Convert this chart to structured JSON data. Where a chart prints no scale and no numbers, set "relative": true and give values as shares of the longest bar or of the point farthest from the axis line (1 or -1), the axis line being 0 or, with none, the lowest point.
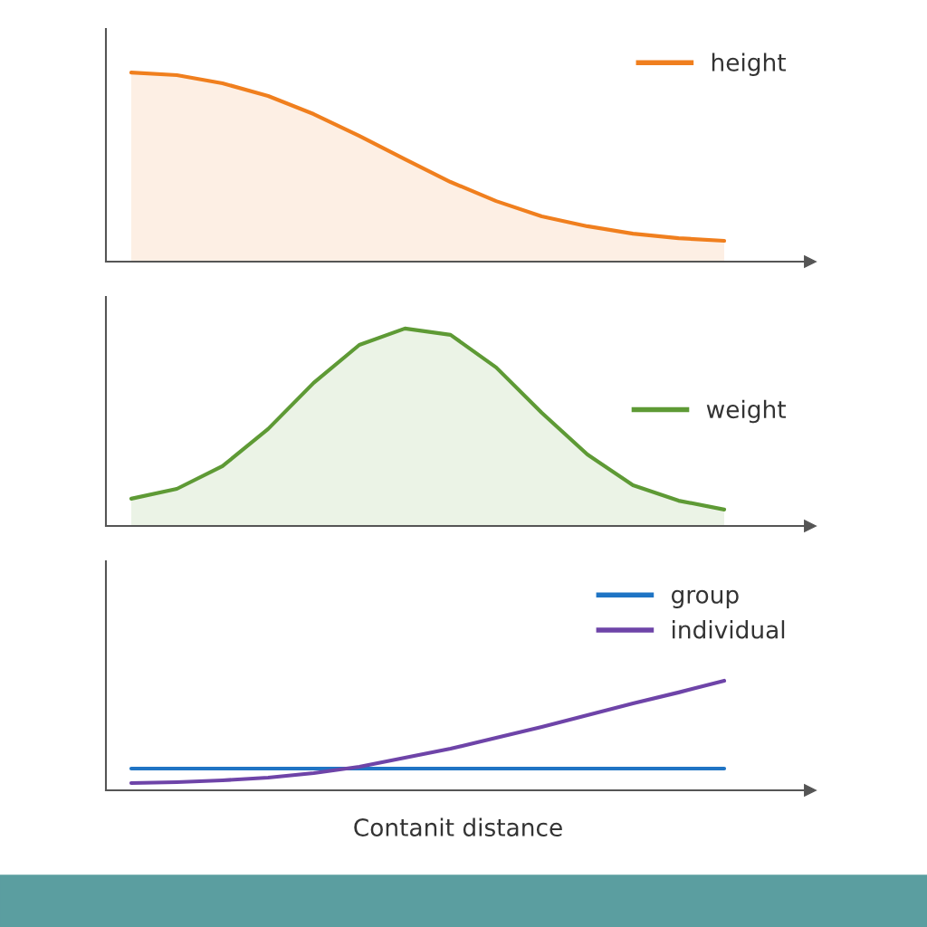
{
  "chart_data": [
    {
      "type": "area",
      "relative": true,
      "tick_labels": false,
      "legend": "top right",
      "grid": false,
      "categories": [
        null,
        null,
        null,
        null,
        null,
        null,
        null,
        null,
        null,
        null,
        null,
        null,
        null,
        null
      ],
      "series": [
        {
          "name": "height",
          "color": "#f07f1e",
          "values": [
            1,
            0.986,
            0.943,
            0.876,
            0.78,
            0.665,
            0.541,
            0.421,
            0.32,
            0.239,
            0.187,
            0.148,
            0.124,
            0.11
          ]
        }
      ]
    },
    {
      "type": "area",
      "relative": true,
      "tick_labels": false,
      "legend": "right",
      "grid": false,
      "categories": [
        null,
        null,
        null,
        null,
        null,
        null,
        null,
        null,
        null,
        null,
        null,
        null,
        null,
        null
      ],
      "series": [
        {
          "name": "weight",
          "color": "#5e9a35",
          "values": [
            0.138,
            0.188,
            0.303,
            0.491,
            0.725,
            0.917,
            1.0,
            0.968,
            0.803,
            0.573,
            0.362,
            0.206,
            0.128,
            0.083
          ]
        }
      ]
    },
    {
      "type": "line",
      "relative": true,
      "tick_labels": false,
      "legend": "top right",
      "grid": false,
      "xlabel": "Contanit distance",
      "categories": [
        null,
        null,
        null,
        null,
        null,
        null,
        null,
        null,
        null,
        null,
        null,
        null,
        null,
        null
      ],
      "series": [
        {
          "name": "group",
          "color": "#1f74c4",
          "values": [
            0.198,
            0.198,
            0.198,
            0.198,
            0.198,
            0.198,
            0.198,
            0.198,
            0.198,
            0.198,
            0.198,
            0.198,
            0.198,
            0.198
          ]
        },
        {
          "name": "individual",
          "color": "#6e44a8",
          "values": [
            0.066,
            0.074,
            0.091,
            0.116,
            0.157,
            0.215,
            0.298,
            0.38,
            0.479,
            0.579,
            0.686,
            0.793,
            0.893,
            1
          ]
        }
      ]
    }
  ]
}
